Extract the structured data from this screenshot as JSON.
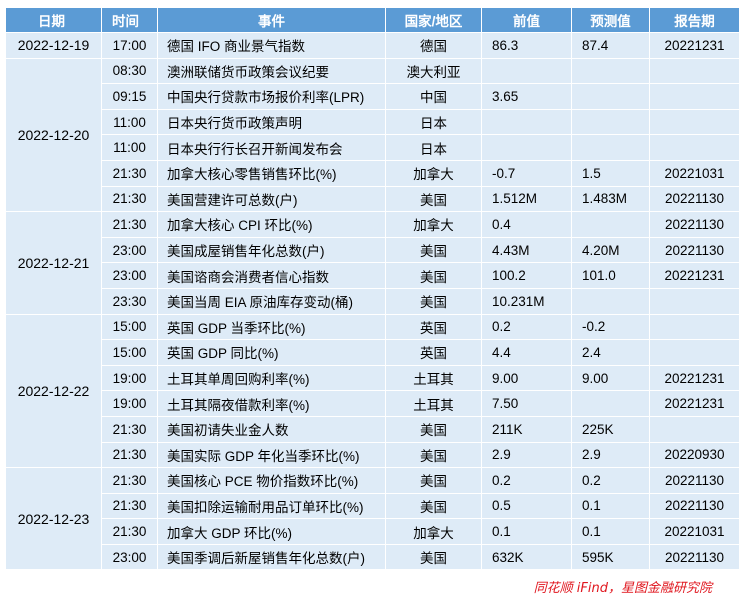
{
  "headers": [
    "日期",
    "时间",
    "事件",
    "国家/地区",
    "前值",
    "预测值",
    "报告期"
  ],
  "groups": [
    {
      "date": "2022-12-19",
      "rows": [
        [
          "17:00",
          "德国 IFO 商业景气指数",
          "德国",
          "86.3",
          "87.4",
          "20221231"
        ]
      ]
    },
    {
      "date": "2022-12-20",
      "rows": [
        [
          "08:30",
          "澳洲联储货币政策会议纪要",
          "澳大利亚",
          "",
          "",
          ""
        ],
        [
          "09:15",
          "中国央行贷款市场报价利率(LPR)",
          "中国",
          "3.65",
          "",
          ""
        ],
        [
          "11:00",
          "日本央行货币政策声明",
          "日本",
          "",
          "",
          ""
        ],
        [
          "11:00",
          "日本央行行长召开新闻发布会",
          "日本",
          "",
          "",
          ""
        ],
        [
          "21:30",
          "加拿大核心零售销售环比(%)",
          "加拿大",
          "-0.7",
          "1.5",
          "20221031"
        ],
        [
          "21:30",
          "美国营建许可总数(户)",
          "美国",
          "1.512M",
          "1.483M",
          "20221130"
        ]
      ]
    },
    {
      "date": "2022-12-21",
      "rows": [
        [
          "21:30",
          "加拿大核心 CPI 环比(%)",
          "加拿大",
          "0.4",
          "",
          "20221130"
        ],
        [
          "23:00",
          "美国成屋销售年化总数(户)",
          "美国",
          "4.43M",
          "4.20M",
          "20221130"
        ],
        [
          "23:00",
          "美国谘商会消费者信心指数",
          "美国",
          "100.2",
          "101.0",
          "20221231"
        ],
        [
          "23:30",
          "美国当周 EIA 原油库存变动(桶)",
          "美国",
          "10.231M",
          "",
          ""
        ]
      ]
    },
    {
      "date": "2022-12-22",
      "rows": [
        [
          "15:00",
          "英国 GDP 当季环比(%)",
          "英国",
          "0.2",
          "-0.2",
          ""
        ],
        [
          "15:00",
          "英国 GDP 同比(%)",
          "英国",
          "4.4",
          "2.4",
          ""
        ],
        [
          "19:00",
          "土耳其单周回购利率(%)",
          "土耳其",
          "9.00",
          "9.00",
          "20221231"
        ],
        [
          "19:00",
          "土耳其隔夜借款利率(%)",
          "土耳其",
          "7.50",
          "",
          "20221231"
        ],
        [
          "21:30",
          "美国初请失业金人数",
          "美国",
          "211K",
          "225K",
          ""
        ],
        [
          "21:30",
          "美国实际 GDP 年化当季环比(%)",
          "美国",
          "2.9",
          "2.9",
          "20220930"
        ]
      ]
    },
    {
      "date": "2022-12-23",
      "rows": [
        [
          "21:30",
          "美国核心 PCE 物价指数环比(%)",
          "美国",
          "0.2",
          "0.2",
          "20221130"
        ],
        [
          "21:30",
          "美国扣除运输耐用品订单环比(%)",
          "美国",
          "0.5",
          "0.1",
          "20221130"
        ],
        [
          "21:30",
          "加拿大 GDP 环比(%)",
          "加拿大",
          "0.1",
          "0.1",
          "20221031"
        ],
        [
          "23:00",
          "美国季调后新屋销售年化总数(户)",
          "美国",
          "632K",
          "595K",
          "20221130"
        ]
      ]
    }
  ],
  "source": "同花顺 iFind，星图金融研究院",
  "colors": {
    "header_bg": "#5b9bd5",
    "cell_bg": "#deebf7",
    "source_text": "#e0161e"
  }
}
